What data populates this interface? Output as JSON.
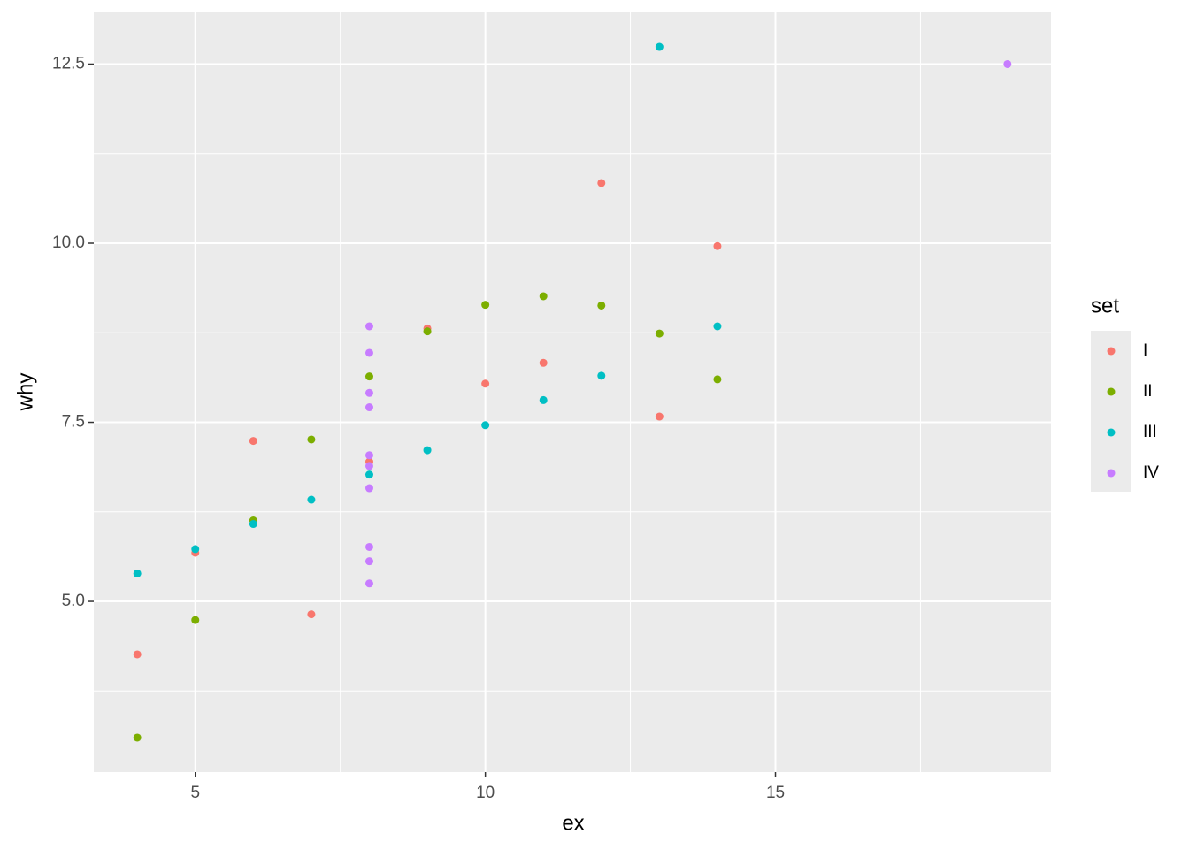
{
  "chart_data": {
    "type": "scatter",
    "x_label": "ex",
    "y_label": "why",
    "legend_title": "set",
    "xlim": [
      3.25,
      19.75
    ],
    "ylim": [
      2.618,
      13.222
    ],
    "xticks": [
      5,
      10,
      15
    ],
    "x_minor_ticks": [
      7.5,
      12.5,
      17.5
    ],
    "yticks": [
      {
        "value": 5,
        "label": "5.0"
      },
      7.5,
      {
        "value": 10,
        "label": "10.0"
      },
      12.5
    ],
    "y_minor_ticks": [
      3.75,
      6.25,
      8.75,
      11.25
    ],
    "grid": true,
    "series": [
      {
        "name": "I",
        "color": "#F8766D",
        "x": [
          10,
          8,
          13,
          9,
          11,
          14,
          6,
          4,
          12,
          7,
          5
        ],
        "values": [
          8.04,
          6.95,
          7.58,
          8.81,
          8.33,
          9.96,
          7.24,
          4.26,
          10.84,
          4.82,
          5.68
        ]
      },
      {
        "name": "II",
        "color": "#7CAE00",
        "x": [
          10,
          8,
          13,
          9,
          11,
          14,
          6,
          4,
          12,
          7,
          5
        ],
        "values": [
          9.14,
          8.14,
          8.74,
          8.77,
          9.26,
          8.1,
          6.13,
          3.1,
          9.13,
          7.26,
          4.74
        ]
      },
      {
        "name": "III",
        "color": "#00BFC4",
        "x": [
          10,
          8,
          13,
          9,
          11,
          14,
          6,
          4,
          12,
          7,
          5
        ],
        "values": [
          7.46,
          6.77,
          12.74,
          7.11,
          7.81,
          8.84,
          6.08,
          5.39,
          8.15,
          6.42,
          5.73
        ]
      },
      {
        "name": "IV",
        "color": "#C77CFF",
        "x": [
          8,
          8,
          8,
          8,
          8,
          8,
          8,
          19,
          8,
          8,
          8
        ],
        "values": [
          6.58,
          5.76,
          7.71,
          8.84,
          8.47,
          7.04,
          5.25,
          12.5,
          5.56,
          7.91,
          6.89
        ]
      }
    ]
  }
}
